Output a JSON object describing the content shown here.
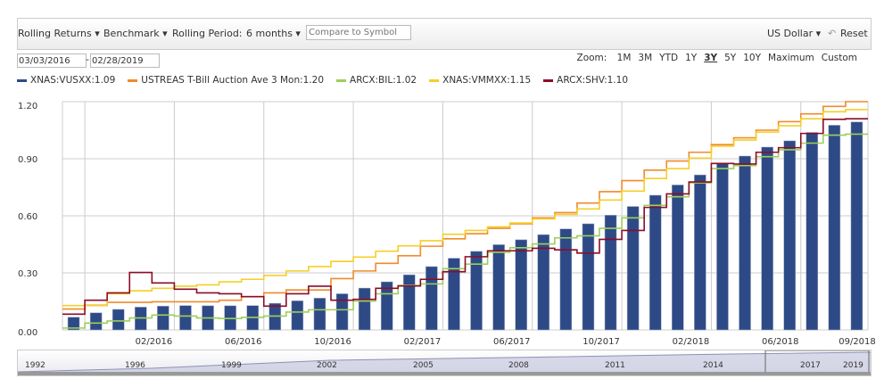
{
  "toolbar": {
    "rolling_returns": "Rolling Returns ▾",
    "benchmark": "Benchmark ▾",
    "rolling_period_label": "Rolling Period:",
    "rolling_period_value": "6 months ▾",
    "compare_placeholder": "Compare to Symbol",
    "currency": "US Dollar ▾",
    "reset": "Reset",
    "reset_icon": "undo-icon"
  },
  "dates": {
    "start": "03/03/2016",
    "separator": "-",
    "end": "02/28/2019"
  },
  "zoom": {
    "label": "Zoom:",
    "options": [
      "1M",
      "3M",
      "YTD",
      "1Y",
      "3Y",
      "5Y",
      "10Y",
      "Maximum",
      "Custom"
    ],
    "selected": "3Y"
  },
  "legend": [
    {
      "label": "XNAS:VUSXX:1.09",
      "color": "#2e4a86"
    },
    {
      "label": "USTREAS T-Bill Auction Ave 3 Mon:1.20",
      "color": "#f08a2c"
    },
    {
      "label": "ARCX:BIL:1.02",
      "color": "#9ccf5a"
    },
    {
      "label": "XNAS:VMMXX:1.15",
      "color": "#f5cf28"
    },
    {
      "label": "ARCX:SHV:1.10",
      "color": "#8b0d28"
    }
  ],
  "chart_data": {
    "type": "bar+line",
    "ylim": [
      0,
      1.2
    ],
    "yticks": [
      "0.00",
      "0.30",
      "0.60",
      "0.90",
      "1.20"
    ],
    "xticks": [
      "02/2016",
      "06/2016",
      "10/2016",
      "02/2017",
      "06/2017",
      "10/2017",
      "02/2018",
      "06/2018",
      "09/2018"
    ],
    "grid": true,
    "legend_position": "top",
    "series": [
      {
        "name": "XNAS:VUSXX",
        "kind": "bar",
        "color": "#2e4a86",
        "values": [
          0.067,
          0.09,
          0.108,
          0.12,
          0.125,
          0.128,
          0.127,
          0.127,
          0.128,
          0.14,
          0.153,
          0.167,
          0.19,
          0.22,
          0.253,
          0.29,
          0.333,
          0.377,
          0.413,
          0.448,
          0.474,
          0.501,
          0.531,
          0.558,
          0.603,
          0.649,
          0.708,
          0.762,
          0.815,
          0.875,
          0.914,
          0.961,
          0.994,
          1.038,
          1.076,
          1.093
        ]
      },
      {
        "name": "USTREAS T-Bill Auction Ave 3 Mon",
        "kind": "step",
        "color": "#f08a2c",
        "values": [
          0.11,
          0.13,
          0.145,
          0.145,
          0.148,
          0.148,
          0.148,
          0.156,
          0.175,
          0.195,
          0.21,
          0.21,
          0.27,
          0.31,
          0.35,
          0.39,
          0.44,
          0.479,
          0.506,
          0.534,
          0.558,
          0.589,
          0.617,
          0.667,
          0.727,
          0.785,
          0.84,
          0.888,
          0.934,
          0.974,
          1.01,
          1.05,
          1.095,
          1.136,
          1.175,
          1.2
        ]
      },
      {
        "name": "ARCX:BIL",
        "kind": "step",
        "color": "#9ccf5a",
        "values": [
          0.01,
          0.036,
          0.047,
          0.063,
          0.078,
          0.073,
          0.063,
          0.06,
          0.066,
          0.073,
          0.094,
          0.106,
          0.106,
          0.152,
          0.19,
          0.234,
          0.242,
          0.322,
          0.346,
          0.408,
          0.432,
          0.452,
          0.484,
          0.495,
          0.534,
          0.589,
          0.655,
          0.7,
          0.773,
          0.848,
          0.864,
          0.911,
          0.947,
          0.982,
          1.024,
          1.029
        ]
      },
      {
        "name": "XNAS:VMMXX",
        "kind": "step",
        "color": "#f5cf28",
        "values": [
          0.128,
          0.128,
          0.19,
          0.206,
          0.219,
          0.23,
          0.237,
          0.253,
          0.266,
          0.286,
          0.31,
          0.333,
          0.36,
          0.383,
          0.414,
          0.442,
          0.469,
          0.503,
          0.523,
          0.542,
          0.562,
          0.584,
          0.608,
          0.636,
          0.683,
          0.73,
          0.796,
          0.848,
          0.903,
          0.966,
          0.998,
          1.04,
          1.073,
          1.11,
          1.147,
          1.158
        ]
      },
      {
        "name": "ARCX:SHV",
        "kind": "step",
        "color": "#8b0d28",
        "values": [
          0.083,
          0.156,
          0.195,
          0.302,
          0.247,
          0.214,
          0.195,
          0.19,
          0.175,
          0.125,
          0.19,
          0.23,
          0.156,
          0.161,
          0.219,
          0.231,
          0.266,
          0.306,
          0.385,
          0.416,
          0.416,
          0.429,
          0.421,
          0.404,
          0.476,
          0.523,
          0.644,
          0.715,
          0.778,
          0.875,
          0.872,
          0.934,
          0.958,
          1.033,
          1.107,
          1.11
        ]
      }
    ]
  },
  "navigator": {
    "years": [
      "1992",
      "1996",
      "1999",
      "2002",
      "2005",
      "2008",
      "2011",
      "2014",
      "2017",
      "2019"
    ]
  }
}
